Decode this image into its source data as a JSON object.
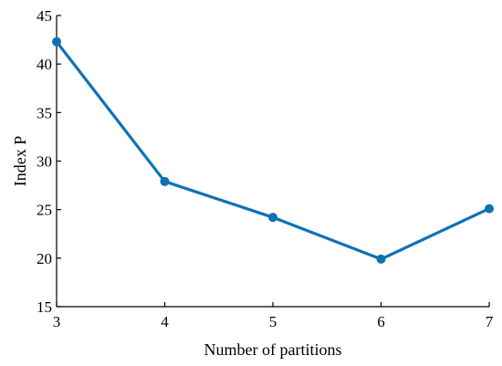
{
  "chart_data": {
    "type": "line",
    "title": "",
    "xlabel": "Number of partitions",
    "ylabel": "Index P",
    "x": [
      3,
      4,
      5,
      6,
      7
    ],
    "series": [
      {
        "values": [
          42.3,
          27.9,
          24.2,
          19.9,
          25.1
        ],
        "color": "#0d72b4"
      }
    ],
    "xlim": [
      3,
      7
    ],
    "ylim": [
      15,
      45
    ],
    "xticks": [
      "3",
      "4",
      "5",
      "6",
      "7"
    ],
    "yticks": [
      "15",
      "20",
      "25",
      "30",
      "35",
      "40",
      "45"
    ],
    "grid": false,
    "legend": "none"
  }
}
